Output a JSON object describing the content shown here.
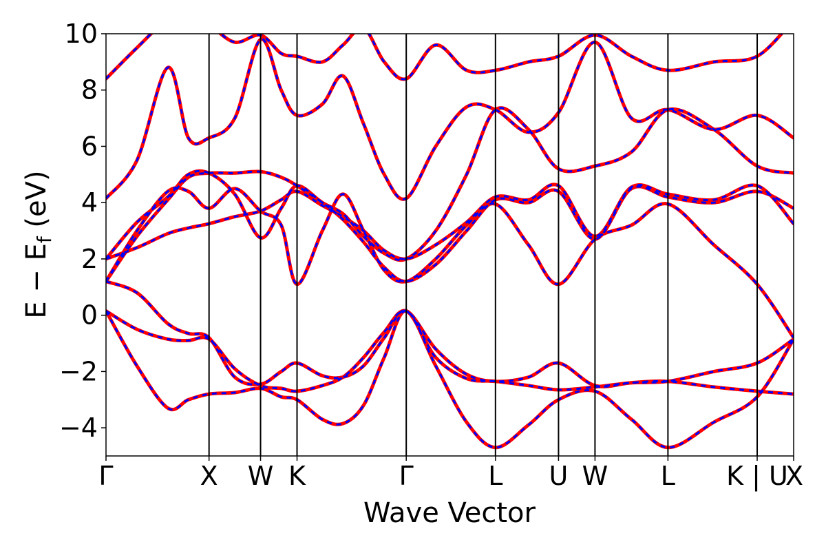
{
  "chart_data": {
    "type": "line",
    "title": "",
    "xlabel": "Wave Vector",
    "ylabel_main": "E − E",
    "ylabel_sub": "f",
    "ylabel_unit": " (eV)",
    "ylim": [
      -5,
      10
    ],
    "yticks": [
      -4,
      -2,
      0,
      2,
      4,
      6,
      8,
      10
    ],
    "ytick_labels": [
      "−4",
      "−2",
      "0",
      "2",
      "4",
      "6",
      "8",
      "10"
    ],
    "kpath": [
      {
        "label": "Γ",
        "x": 0.0
      },
      {
        "label": "X",
        "x": 1.0
      },
      {
        "label": "W",
        "x": 1.5
      },
      {
        "label": "K",
        "x": 1.854
      },
      {
        "label": "Γ",
        "x": 2.914
      },
      {
        "label": "L",
        "x": 3.78
      },
      {
        "label": "U",
        "x": 4.392
      },
      {
        "label": "W",
        "x": 4.746
      },
      {
        "label": "L",
        "x": 5.454
      },
      {
        "label": "K | U",
        "x": 6.32
      },
      {
        "label": "X",
        "x": 6.674
      }
    ],
    "series_styles": [
      {
        "color": "#ff0000",
        "style": "solid"
      },
      {
        "color": "#0000ff",
        "style": "dashed"
      }
    ],
    "bands": [
      {
        "x": [
          0,
          0.3,
          0.6,
          0.8,
          1.0,
          1.25,
          1.5,
          1.7,
          1.854,
          2.1,
          2.3,
          2.5,
          2.7,
          2.914,
          3.2,
          3.5,
          3.78,
          4.1,
          4.392,
          4.746,
          5.1,
          5.454,
          5.9,
          6.32,
          6.674
        ],
        "y": [
          0.15,
          -1.8,
          -3.3,
          -3.0,
          -2.8,
          -2.75,
          -2.6,
          -2.9,
          -3.0,
          -3.7,
          -3.85,
          -3.2,
          -1.5,
          0.15,
          -1.8,
          -3.8,
          -4.7,
          -3.9,
          -3.0,
          -2.7,
          -3.7,
          -4.7,
          -3.8,
          -2.9,
          -0.85
        ]
      },
      {
        "x": [
          0,
          0.3,
          0.6,
          0.8,
          1.0,
          1.25,
          1.5,
          1.7,
          1.854,
          2.1,
          2.3,
          2.5,
          2.7,
          2.914,
          3.2,
          3.5,
          3.78,
          4.1,
          4.392,
          4.746,
          5.1,
          5.454,
          5.9,
          6.32,
          6.674
        ],
        "y": [
          0.15,
          -0.5,
          -0.85,
          -0.9,
          -0.85,
          -1.9,
          -2.5,
          -2.6,
          -2.7,
          -2.5,
          -2.2,
          -1.5,
          -0.6,
          0.15,
          -1.2,
          -2.1,
          -2.35,
          -2.2,
          -1.7,
          -2.5,
          -2.4,
          -2.35,
          -2.0,
          -1.7,
          -0.85
        ]
      },
      {
        "x": [
          0,
          0.3,
          0.6,
          0.8,
          1.0,
          1.25,
          1.5,
          1.7,
          1.854,
          2.1,
          2.3,
          2.5,
          2.7,
          2.914,
          3.2,
          3.5,
          3.78,
          4.1,
          4.392,
          4.746,
          5.1,
          5.454,
          5.9,
          6.32,
          6.674
        ],
        "y": [
          1.2,
          0.8,
          -0.3,
          -0.65,
          -0.8,
          -2.2,
          -2.45,
          -2.0,
          -1.7,
          -2.15,
          -2.2,
          -1.8,
          -0.8,
          0.15,
          -1.5,
          -2.25,
          -2.35,
          -2.5,
          -2.65,
          -2.55,
          -2.4,
          -2.35,
          -2.55,
          -2.7,
          -2.8
        ]
      },
      {
        "x": [
          0,
          0.3,
          0.6,
          0.8,
          1.0,
          1.25,
          1.5,
          1.7,
          1.854,
          2.1,
          2.3,
          2.5,
          2.7,
          2.914,
          3.2,
          3.5,
          3.78,
          4.1,
          4.392,
          4.746,
          5.1,
          5.454,
          5.9,
          6.32,
          6.674
        ],
        "y": [
          1.2,
          3.0,
          4.4,
          4.4,
          3.8,
          4.5,
          3.7,
          3.2,
          1.1,
          3.0,
          4.3,
          3.0,
          1.6,
          1.2,
          2.0,
          3.2,
          3.95,
          2.5,
          1.1,
          2.7,
          3.2,
          3.95,
          2.5,
          1.1,
          -0.8
        ]
      },
      {
        "x": [
          0,
          0.3,
          0.6,
          0.8,
          1.0,
          1.25,
          1.5,
          1.7,
          1.854,
          2.1,
          2.3,
          2.5,
          2.7,
          2.914,
          3.2,
          3.5,
          3.78,
          4.1,
          4.392,
          4.746,
          5.1,
          5.454,
          5.9,
          6.32,
          6.674
        ],
        "y": [
          1.2,
          2.8,
          4.1,
          4.9,
          5.05,
          5.05,
          5.1,
          4.9,
          4.6,
          4.0,
          3.4,
          2.6,
          1.7,
          1.2,
          1.8,
          3.0,
          4.1,
          4.0,
          4.4,
          2.7,
          4.5,
          4.2,
          4.0,
          4.4,
          3.8
        ]
      },
      {
        "x": [
          0,
          0.3,
          0.6,
          0.8,
          1.0,
          1.25,
          1.5,
          1.7,
          1.854,
          2.1,
          2.3,
          2.5,
          2.7,
          2.914,
          3.2,
          3.5,
          3.78,
          4.1,
          4.392,
          4.746,
          5.1,
          5.454,
          5.9,
          6.32,
          6.674
        ],
        "y": [
          2.0,
          2.4,
          2.9,
          3.1,
          3.25,
          3.5,
          3.7,
          4.1,
          4.4,
          3.9,
          3.5,
          3.0,
          2.3,
          2.0,
          2.5,
          3.3,
          4.2,
          4.1,
          4.6,
          2.8,
          4.55,
          4.3,
          4.1,
          4.6,
          3.25
        ]
      },
      {
        "x": [
          0,
          0.3,
          0.6,
          0.8,
          1.0,
          1.25,
          1.5,
          1.7,
          1.854,
          2.1,
          2.3,
          2.5,
          2.7,
          2.914,
          3.2,
          3.5,
          3.78,
          4.1,
          4.392,
          4.746,
          5.1,
          5.454,
          5.9,
          6.32,
          6.674
        ],
        "y": [
          2.0,
          3.3,
          4.2,
          5.0,
          5.05,
          4.3,
          2.75,
          3.8,
          4.6,
          4.0,
          3.6,
          2.8,
          2.2,
          2.0,
          3.0,
          5.0,
          7.3,
          6.6,
          5.2,
          5.3,
          5.8,
          7.3,
          6.6,
          5.3,
          5.05
        ]
      },
      {
        "x": [
          0,
          0.3,
          0.6,
          0.8,
          1.0,
          1.25,
          1.5,
          1.7,
          1.854,
          2.1,
          2.3,
          2.5,
          2.7,
          2.914,
          3.2,
          3.5,
          3.78,
          4.1,
          4.392,
          4.746,
          5.1,
          5.454,
          5.9,
          6.32,
          6.674
        ],
        "y": [
          4.15,
          5.5,
          8.8,
          6.3,
          6.3,
          7.0,
          9.8,
          8.0,
          7.1,
          7.5,
          8.5,
          6.8,
          5.0,
          4.15,
          6.0,
          7.4,
          7.3,
          6.5,
          7.2,
          9.7,
          7.0,
          7.3,
          6.6,
          7.1,
          6.3
        ]
      },
      {
        "x": [
          0,
          0.3,
          0.6,
          0.8,
          1.0,
          1.25,
          1.5,
          1.7,
          1.854,
          2.1,
          2.3,
          2.5,
          2.7,
          2.914,
          3.2,
          3.5,
          3.78,
          4.1,
          4.392,
          4.746,
          5.1,
          5.454,
          5.9,
          6.32,
          6.674
        ],
        "y": [
          8.4,
          9.5,
          10.5,
          10.5,
          10.3,
          9.7,
          9.95,
          9.3,
          9.2,
          9.0,
          9.6,
          10.2,
          9.0,
          8.4,
          9.6,
          8.7,
          8.7,
          9.0,
          9.2,
          9.95,
          9.2,
          8.7,
          9.0,
          9.2,
          10.5
        ]
      }
    ]
  }
}
